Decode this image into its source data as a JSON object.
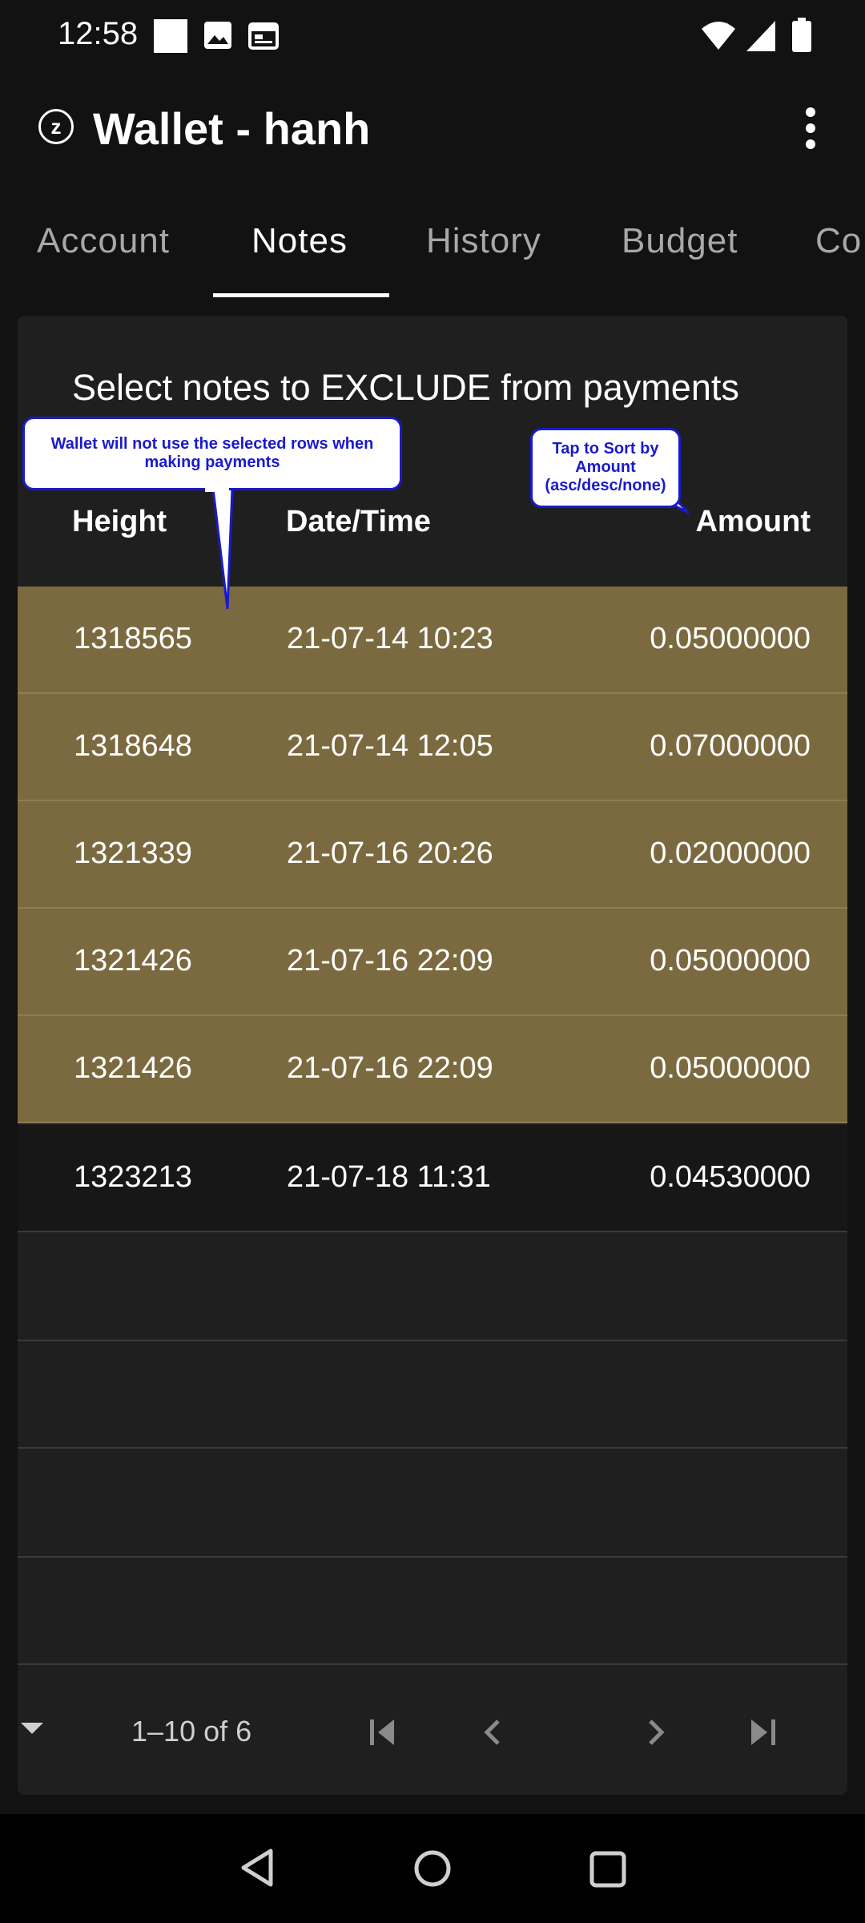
{
  "status_bar": {
    "time": "12:58",
    "left_icons": [
      "square-notification-icon",
      "image-icon",
      "calendar-icon"
    ],
    "right_icons": [
      "wifi-icon",
      "cell-signal-icon",
      "battery-icon"
    ]
  },
  "app_bar": {
    "logo_letter": "z",
    "title": "Wallet - hanh",
    "menu_icon": "more-vert-icon"
  },
  "tabs": [
    {
      "label": "Account",
      "active": false
    },
    {
      "label": "Notes",
      "active": true
    },
    {
      "label": "History",
      "active": false
    },
    {
      "label": "Budget",
      "active": false
    },
    {
      "label": "Co",
      "active": false
    }
  ],
  "notes": {
    "title": "Select notes to EXCLUDE from payments",
    "columns": {
      "height": "Height",
      "datetime": "Date/Time",
      "amount": "Amount"
    },
    "rows": [
      {
        "height": "1318565",
        "datetime": "21-07-14 10:23",
        "amount": "0.05000000",
        "selected": true
      },
      {
        "height": "1318648",
        "datetime": "21-07-14 12:05",
        "amount": "0.07000000",
        "selected": true
      },
      {
        "height": "1321339",
        "datetime": "21-07-16 20:26",
        "amount": "0.02000000",
        "selected": true
      },
      {
        "height": "1321426",
        "datetime": "21-07-16 22:09",
        "amount": "0.05000000",
        "selected": true
      },
      {
        "height": "1321426",
        "datetime": "21-07-16 22:09",
        "amount": "0.05000000",
        "selected": true
      },
      {
        "height": "1323213",
        "datetime": "21-07-18 11:31",
        "amount": "0.04530000",
        "selected": false
      }
    ],
    "tooltips": {
      "rows": "Wallet will not use the selected rows when making payments",
      "sort_line1": "Tap to Sort by",
      "sort_line2": "Amount",
      "sort_line3": "(asc/desc/none)"
    },
    "pagination": {
      "label": "1–10 of 6",
      "icons": [
        "first-page-icon",
        "prev-page-icon",
        "next-page-icon",
        "last-page-icon"
      ]
    }
  },
  "colors": {
    "selected_row": "#7b6a40",
    "tooltip_border": "#1a1acc",
    "background": "#121212"
  },
  "nav_bar": {
    "icons": [
      "back-icon",
      "home-icon",
      "recents-icon"
    ]
  }
}
